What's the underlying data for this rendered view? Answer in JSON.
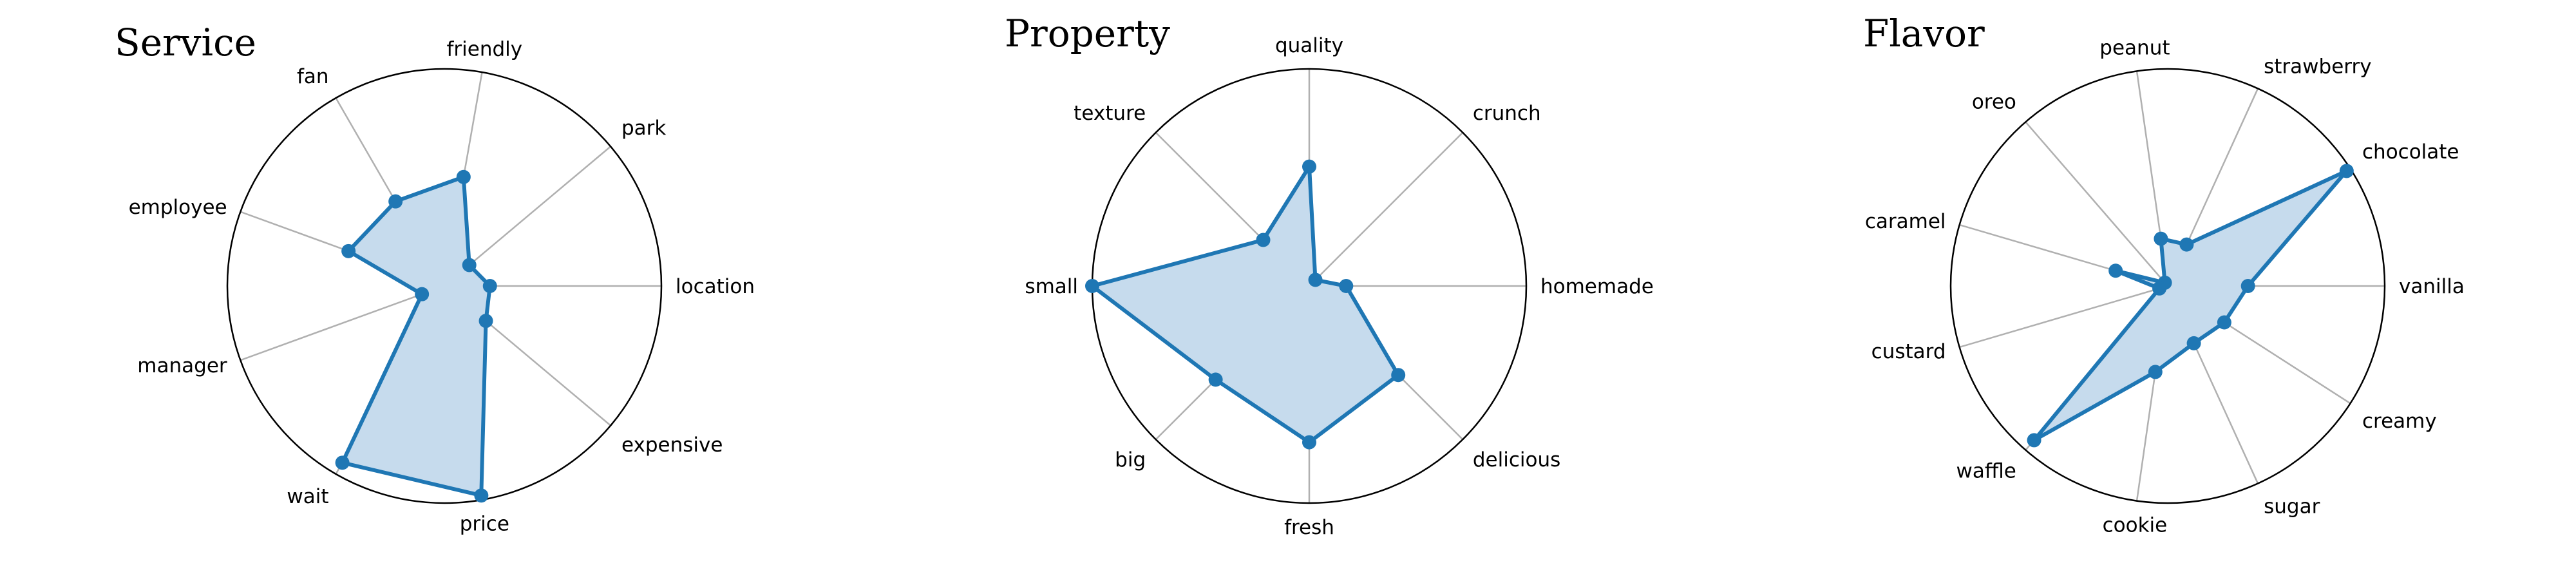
{
  "colors": {
    "series": "#1f77b4",
    "fill": "#c6dbed",
    "grid": "#b0b0b0",
    "ring": "#000000"
  },
  "chart_data": [
    {
      "type": "radar",
      "title": "Service",
      "rmax": 1.0,
      "grid": true,
      "categories": [
        "location",
        "park",
        "friendly",
        "fan",
        "employee",
        "manager",
        "wait",
        "price",
        "expensive"
      ],
      "series": [
        {
          "values": [
            0.21,
            0.15,
            0.51,
            0.45,
            0.47,
            0.11,
            0.94,
            0.98,
            0.25
          ]
        }
      ]
    },
    {
      "type": "radar",
      "title": "Property",
      "rmax": 1.0,
      "grid": true,
      "categories": [
        "homemade",
        "crunch",
        "quality",
        "texture",
        "small",
        "big",
        "fresh",
        "delicious"
      ],
      "series": [
        {
          "values": [
            0.17,
            0.04,
            0.55,
            0.3,
            1.0,
            0.61,
            0.72,
            0.58
          ]
        }
      ]
    },
    {
      "type": "radar",
      "title": "Flavor",
      "rmax": 1.0,
      "grid": true,
      "categories": [
        "vanilla",
        "chocolate",
        "strawberry",
        "peanut",
        "oreo",
        "caramel",
        "custard",
        "waffle",
        "cookie",
        "sugar",
        "creamy"
      ],
      "series": [
        {
          "values": [
            0.37,
            0.98,
            0.21,
            0.22,
            0.02,
            0.25,
            0.04,
            0.94,
            0.4,
            0.29,
            0.31
          ]
        }
      ]
    }
  ]
}
